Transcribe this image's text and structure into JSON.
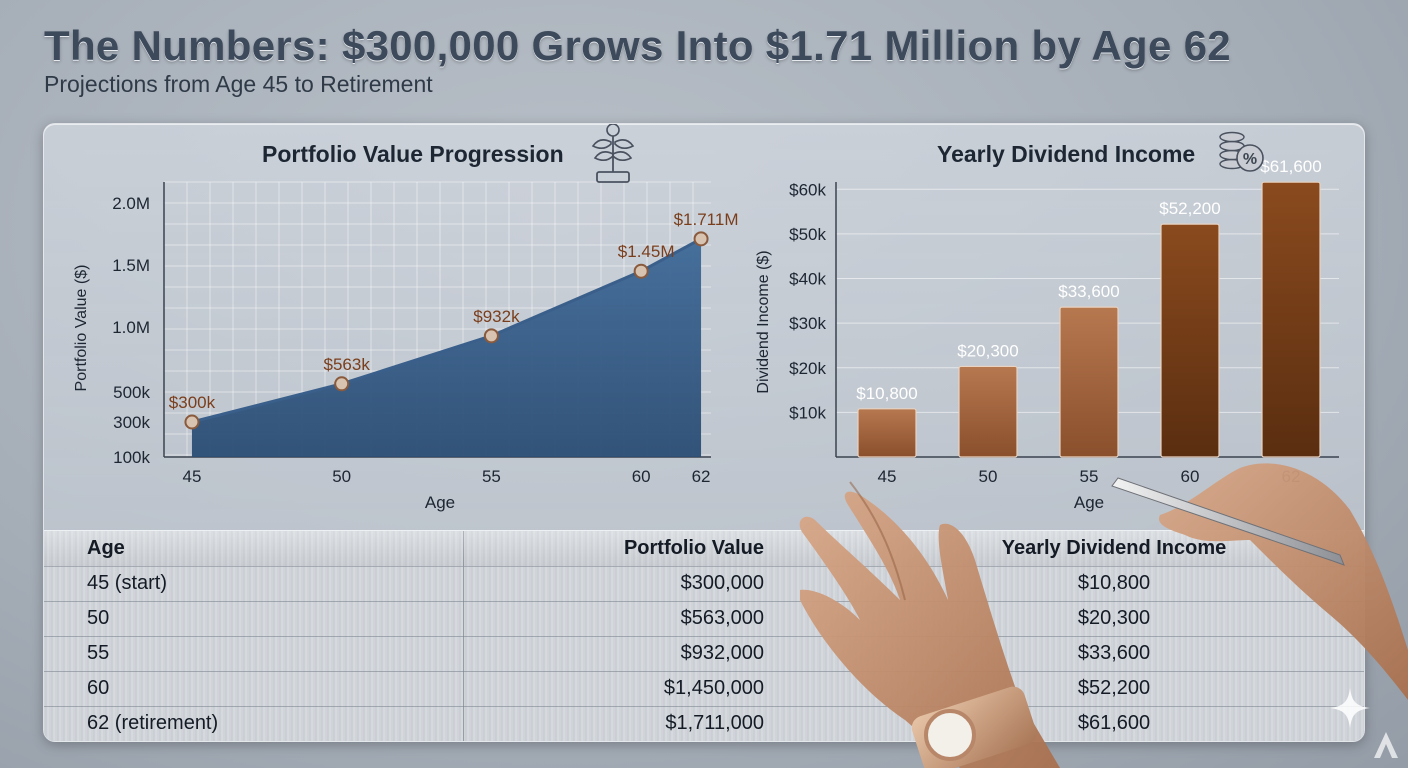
{
  "header": {
    "title": "The Numbers: $300,000 Grows Into $1.71 Million by Age 62",
    "subtitle": "Projections from Age 45 to Retirement"
  },
  "chart_data": [
    {
      "type": "area",
      "title": "Portfolio Value Progression",
      "icon": "plant-growth-icon",
      "xlabel": "Age",
      "ylabel": "Portfolio Value ($)",
      "x_ticks": [
        "45",
        "50",
        "55",
        "60",
        "62"
      ],
      "y_ticks": [
        "100k",
        "300k",
        "500k",
        "1.0M",
        "1.5M",
        "2.0M"
      ],
      "x": [
        45,
        50,
        55,
        60,
        62
      ],
      "values": [
        300000,
        563000,
        932000,
        1450000,
        1711000
      ],
      "data_labels": [
        "$300k",
        "$563k",
        "$932k",
        "$1.45M",
        "$1.711M"
      ],
      "ylim": [
        100000,
        2000000
      ],
      "grid": true,
      "colors": {
        "fill": "#2b4d74",
        "line": "#3a5f8a",
        "label": "#7a3e1c"
      }
    },
    {
      "type": "bar",
      "title": "Yearly Dividend Income",
      "icon": "coins-percent-icon",
      "xlabel": "Age",
      "ylabel": "Dividend Income ($)",
      "categories": [
        "45",
        "50",
        "55",
        "60",
        "62"
      ],
      "y_ticks": [
        "$10k",
        "$20k",
        "$30k",
        "$40k",
        "$50k",
        "$60k"
      ],
      "values": [
        10800,
        20300,
        33600,
        52200,
        61600
      ],
      "data_labels": [
        "$10,800",
        "$20,300",
        "$33,600",
        "$52,200",
        "$61,600"
      ],
      "ylim": [
        0,
        65000
      ],
      "grid": true,
      "colors": {
        "bar_light": "#b6784f",
        "bar_dark": "#5a2e10"
      }
    }
  ],
  "table": {
    "headers": [
      "Age",
      "Portfolio Value",
      "Yearly Dividend Income"
    ],
    "rows": [
      [
        "45 (start)",
        "$300,000",
        "$10,800"
      ],
      [
        "50",
        "$563,000",
        "$20,300"
      ],
      [
        "55",
        "$932,000",
        "$33,600"
      ],
      [
        "60",
        "$1,450,000",
        "$52,200"
      ],
      [
        "62 (retirement)",
        "$1,711,000",
        "$61,600"
      ]
    ]
  }
}
